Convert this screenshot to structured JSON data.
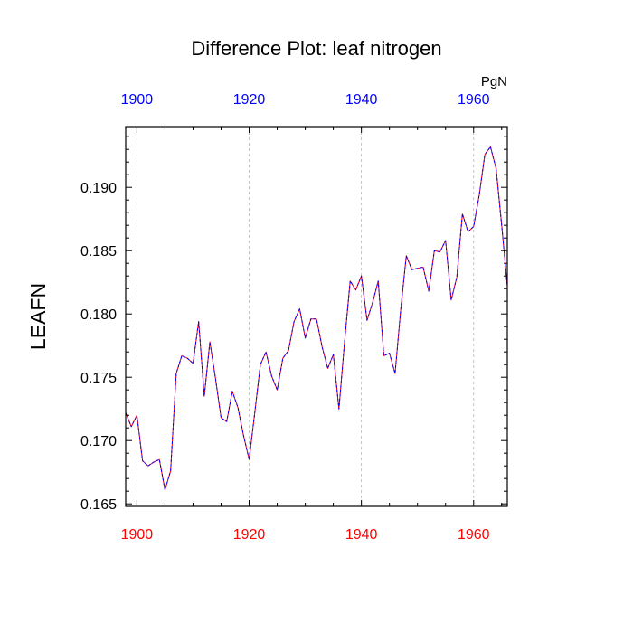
{
  "chart_data": {
    "type": "line",
    "title": "Difference Plot: leaf nitrogen",
    "units_label": "PgN",
    "ylabel": "LEAFN",
    "xlabel": "",
    "xlim": [
      1898,
      1966
    ],
    "ylim": [
      0.1648,
      0.1948
    ],
    "x_ticks": [
      1900,
      1920,
      1940,
      1960
    ],
    "y_ticks": [
      0.165,
      0.17,
      0.175,
      0.18,
      0.185,
      0.19
    ],
    "y_tick_labels": [
      "0.165",
      "0.170",
      "0.175",
      "0.180",
      "0.185",
      "0.190"
    ],
    "x_tick_labels_bottom": [
      "1900",
      "1920",
      "1940",
      "1960"
    ],
    "x_tick_labels_top": [
      "1900",
      "1920",
      "1940",
      "1960"
    ],
    "grid": "vertical dashed at major x ticks",
    "colors": {
      "bottom_axis_labels": "#ff0000",
      "top_axis_labels": "#0000ff",
      "series_1": "#ff0000",
      "series_2": "#0000ff",
      "grid": "#b4b4b4"
    },
    "x": [
      1898,
      1899,
      1900,
      1901,
      1902,
      1903,
      1904,
      1905,
      1906,
      1907,
      1908,
      1909,
      1910,
      1911,
      1912,
      1913,
      1914,
      1915,
      1916,
      1917,
      1918,
      1919,
      1920,
      1921,
      1922,
      1923,
      1924,
      1925,
      1926,
      1927,
      1928,
      1929,
      1930,
      1931,
      1932,
      1933,
      1934,
      1935,
      1936,
      1937,
      1938,
      1939,
      1940,
      1941,
      1942,
      1943,
      1944,
      1945,
      1946,
      1947,
      1948,
      1949,
      1950,
      1951,
      1952,
      1953,
      1954,
      1955,
      1956,
      1957,
      1958,
      1959,
      1960,
      1961,
      1962,
      1963,
      1964,
      1965,
      1966
    ],
    "series": [
      {
        "values": [
          0.1722,
          0.1711,
          0.172,
          0.1684,
          0.168,
          0.1683,
          0.1685,
          0.1661,
          0.1676,
          0.1753,
          0.1767,
          0.1765,
          0.1761,
          0.1794,
          0.1735,
          0.1778,
          0.1749,
          0.1718,
          0.1715,
          0.1739,
          0.1726,
          0.1704,
          0.1685,
          0.1722,
          0.176,
          0.177,
          0.1751,
          0.174,
          0.1765,
          0.1771,
          0.1794,
          0.1804,
          0.1781,
          0.1796,
          0.1796,
          0.1774,
          0.1757,
          0.1768,
          0.1725,
          0.1778,
          0.1826,
          0.1819,
          0.183,
          0.1795,
          0.1809,
          0.1826,
          0.1767,
          0.1769,
          0.1753,
          0.1803,
          0.1846,
          0.1835,
          0.1836,
          0.1837,
          0.1818,
          0.185,
          0.1849,
          0.1858,
          0.1811,
          0.1829,
          0.1879,
          0.1865,
          0.1869,
          0.1894,
          0.1926,
          0.1932,
          0.1915,
          0.187,
          0.1822
        ]
      },
      {
        "values": [
          0.1722,
          0.1711,
          0.172,
          0.1684,
          0.168,
          0.1683,
          0.1685,
          0.1661,
          0.1676,
          0.1753,
          0.1767,
          0.1765,
          0.1761,
          0.1794,
          0.1735,
          0.1778,
          0.1749,
          0.1718,
          0.1715,
          0.1739,
          0.1726,
          0.1704,
          0.1685,
          0.1722,
          0.176,
          0.177,
          0.1751,
          0.174,
          0.1765,
          0.1771,
          0.1794,
          0.1804,
          0.1781,
          0.1796,
          0.1796,
          0.1774,
          0.1757,
          0.1768,
          0.1725,
          0.1778,
          0.1826,
          0.1819,
          0.183,
          0.1795,
          0.1809,
          0.1826,
          0.1767,
          0.1769,
          0.1753,
          0.1803,
          0.1846,
          0.1835,
          0.1836,
          0.1837,
          0.1818,
          0.185,
          0.1849,
          0.1858,
          0.1811,
          0.1829,
          0.1879,
          0.1865,
          0.1869,
          0.1894,
          0.1926,
          0.1932,
          0.1915,
          0.187,
          0.1822
        ]
      }
    ]
  }
}
